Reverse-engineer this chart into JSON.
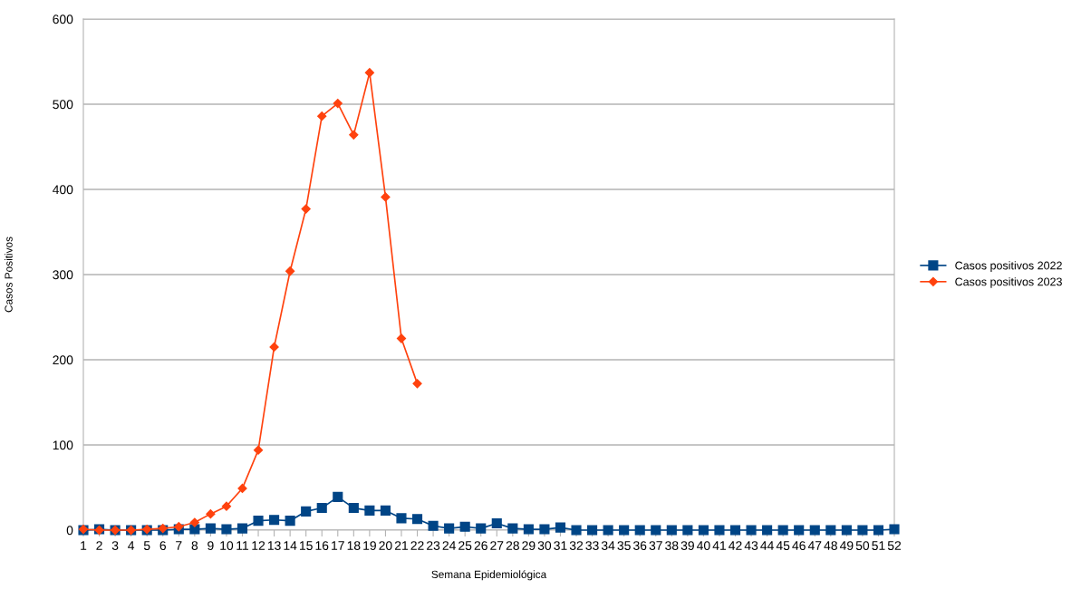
{
  "chart_data": {
    "type": "line",
    "xlabel": "Semana Epidemiológica",
    "ylabel": "Casos Positivos",
    "categories": [
      "1",
      "2",
      "3",
      "4",
      "5",
      "6",
      "7",
      "8",
      "9",
      "10",
      "11",
      "12",
      "13",
      "14",
      "15",
      "16",
      "17",
      "18",
      "19",
      "20",
      "21",
      "22",
      "23",
      "24",
      "25",
      "26",
      "27",
      "28",
      "29",
      "30",
      "31",
      "32",
      "33",
      "34",
      "35",
      "36",
      "37",
      "38",
      "39",
      "40",
      "41",
      "42",
      "43",
      "44",
      "45",
      "46",
      "47",
      "48",
      "49",
      "50",
      "51",
      "52"
    ],
    "series": [
      {
        "name": "Casos positivos 2022",
        "color": "#004586",
        "marker": "square",
        "values": [
          0,
          1,
          0,
          0,
          0,
          0,
          1,
          1,
          2,
          1,
          2,
          11,
          12,
          11,
          22,
          26,
          39,
          26,
          23,
          23,
          14,
          13,
          5,
          2,
          4,
          2,
          8,
          2,
          1,
          1,
          3,
          0,
          0,
          0,
          0,
          0,
          0,
          0,
          0,
          0,
          0,
          0,
          0,
          0,
          0,
          0,
          0,
          0,
          0,
          0,
          0,
          1
        ]
      },
      {
        "name": "Casos positivos 2023",
        "color": "#ff420e",
        "marker": "diamond",
        "values": [
          1,
          0,
          0,
          0,
          1,
          2,
          4,
          9,
          19,
          28,
          49,
          94,
          215,
          304,
          377,
          486,
          501,
          464,
          537,
          391,
          225,
          172,
          null,
          null,
          null,
          null,
          null,
          null,
          null,
          null,
          null,
          null,
          null,
          null,
          null,
          null,
          null,
          null,
          null,
          null,
          null,
          null,
          null,
          null,
          null,
          null,
          null,
          null,
          null,
          null,
          null,
          null
        ]
      }
    ],
    "ylim": [
      0,
      600
    ],
    "yticks": [
      0,
      100,
      200,
      300,
      400,
      500,
      600
    ],
    "grid": "y",
    "legend": "right",
    "line_style": "solid"
  }
}
